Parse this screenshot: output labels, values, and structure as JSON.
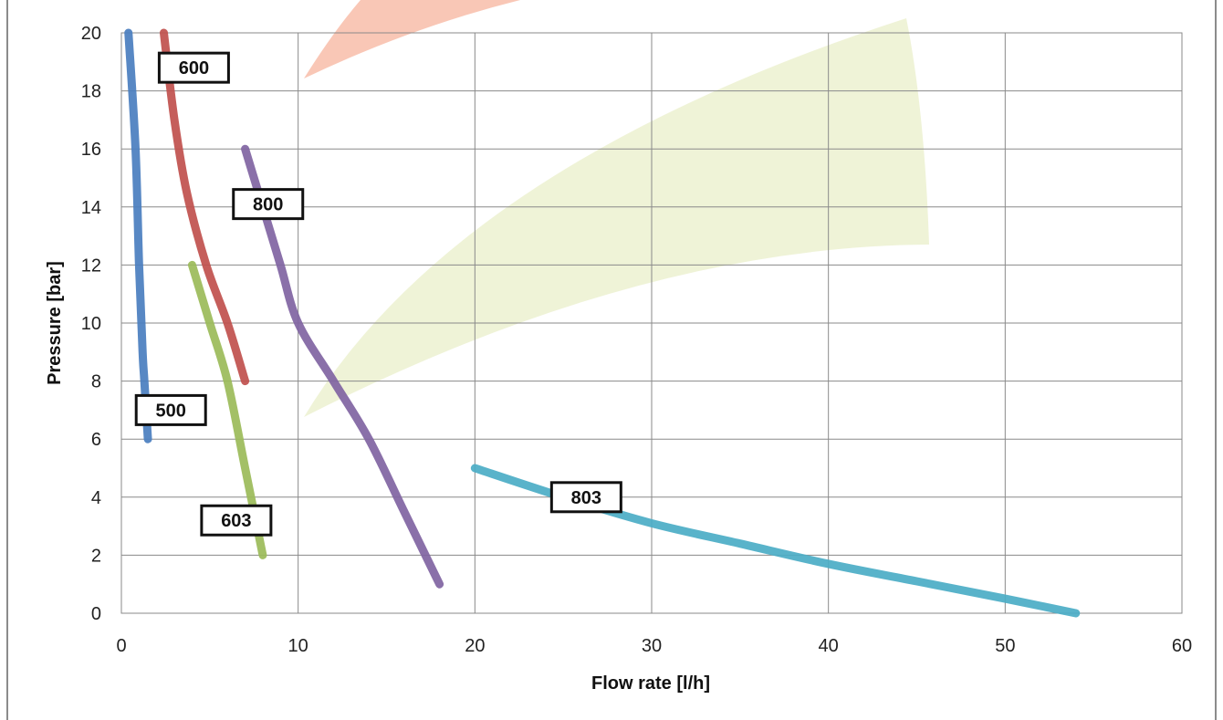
{
  "chart_data": {
    "type": "line",
    "xlabel": "Flow rate [l/h]",
    "ylabel": "Pressure [bar]",
    "xlim": [
      0,
      60
    ],
    "ylim": [
      0,
      20
    ],
    "x_ticks": [
      "0",
      "10",
      "20",
      "30",
      "40",
      "50",
      "60"
    ],
    "y_ticks": [
      "0",
      "2",
      "4",
      "6",
      "8",
      "10",
      "12",
      "14",
      "16",
      "18",
      "20"
    ],
    "grid": true,
    "series": [
      {
        "name": "500",
        "color": "#4a7ebf",
        "label_at": [
          2.8,
          7.0
        ],
        "points": [
          [
            0.4,
            20
          ],
          [
            0.8,
            16
          ],
          [
            1.0,
            12
          ],
          [
            1.2,
            9
          ],
          [
            1.3,
            8
          ],
          [
            1.5,
            6
          ]
        ]
      },
      {
        "name": "600",
        "color": "#c0504d",
        "label_at": [
          4.1,
          18.8
        ],
        "points": [
          [
            2.4,
            20
          ],
          [
            3.0,
            17
          ],
          [
            3.7,
            14.5
          ],
          [
            4.8,
            12
          ],
          [
            6.0,
            10
          ],
          [
            7.0,
            8
          ]
        ]
      },
      {
        "name": "800",
        "color": "#8064a2",
        "label_at": [
          8.3,
          14.1
        ],
        "points": [
          [
            7.0,
            16
          ],
          [
            8.0,
            14
          ],
          [
            9.0,
            12
          ],
          [
            10.0,
            10
          ],
          [
            12.0,
            8
          ],
          [
            14.0,
            6
          ],
          [
            16.0,
            3.5
          ],
          [
            18.0,
            1
          ]
        ]
      },
      {
        "name": "603",
        "color": "#9bbb59",
        "label_at": [
          6.5,
          3.2
        ],
        "points": [
          [
            4.0,
            12
          ],
          [
            5.0,
            10
          ],
          [
            6.0,
            8
          ],
          [
            7.0,
            5
          ],
          [
            8.0,
            2
          ]
        ]
      },
      {
        "name": "803",
        "color": "#4bacc6",
        "label_at": [
          26.3,
          4.0
        ],
        "points": [
          [
            20,
            5
          ],
          [
            25,
            4
          ],
          [
            30,
            3.1
          ],
          [
            35,
            2.4
          ],
          [
            40,
            1.7
          ],
          [
            45,
            1.1
          ],
          [
            50,
            0.5
          ],
          [
            54,
            0
          ]
        ]
      }
    ]
  }
}
